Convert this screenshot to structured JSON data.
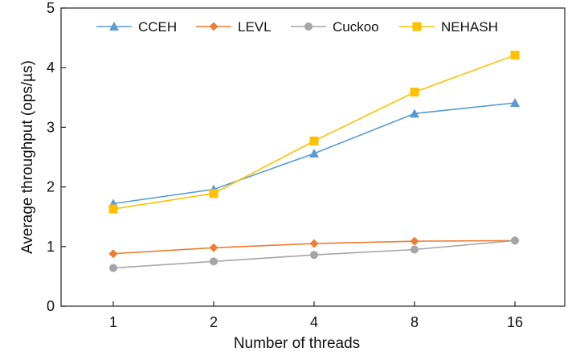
{
  "chart_data": {
    "type": "line",
    "title": "",
    "xlabel": "Number of threads",
    "ylabel": "Average throughput (ops/µs)",
    "categories": [
      "1",
      "2",
      "4",
      "8",
      "16"
    ],
    "ylim": [
      0,
      5
    ],
    "yticks": [
      "0",
      "1",
      "2",
      "3",
      "4",
      "5"
    ],
    "grid": false,
    "legend_position": "top",
    "series": [
      {
        "name": "CCEH",
        "color": "#5b9bd5",
        "marker": "triangle",
        "values": [
          1.72,
          1.96,
          2.56,
          3.23,
          3.41
        ]
      },
      {
        "name": "LEVL",
        "color": "#ed7d31",
        "marker": "diamond",
        "values": [
          0.88,
          0.98,
          1.05,
          1.09,
          1.1
        ]
      },
      {
        "name": "Cuckoo",
        "color": "#a5a5a5",
        "marker": "circle",
        "values": [
          0.64,
          0.75,
          0.86,
          0.95,
          1.1
        ]
      },
      {
        "name": "NEHASH",
        "color": "#ffc000",
        "marker": "square",
        "values": [
          1.63,
          1.89,
          2.77,
          3.59,
          4.21
        ]
      }
    ]
  }
}
